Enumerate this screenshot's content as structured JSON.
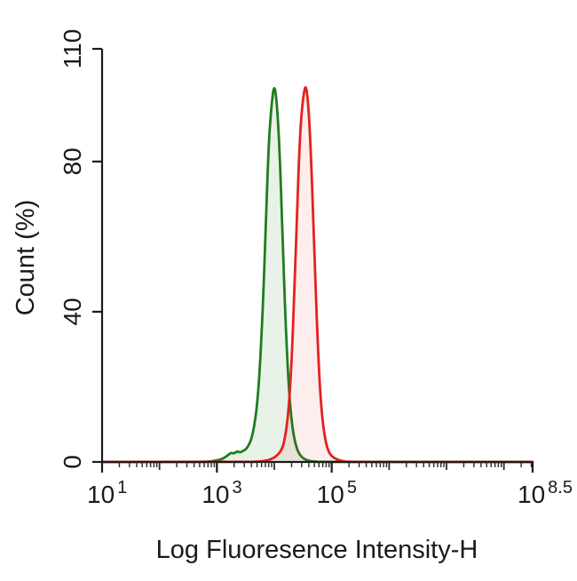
{
  "page": {
    "background": "#ffffff"
  },
  "chart_data": {
    "type": "area",
    "chart_kind": "flow-cytometry-histogram",
    "title": "",
    "xlabel": "Log Fluoresence Intensity-H",
    "ylabel": "Count (%)",
    "x_scale": "log10",
    "xlog_range": [
      1,
      8.5
    ],
    "ylim": [
      0,
      110
    ],
    "grid": false,
    "legend": "none",
    "axis_color": "#1a1a1a",
    "y_ticks": [
      {
        "value": 0,
        "label": "0"
      },
      {
        "value": 40,
        "label": "40"
      },
      {
        "value": 80,
        "label": "80"
      },
      {
        "value": 110,
        "label": "110"
      }
    ],
    "x_ticks": [
      {
        "log": 1,
        "base": "10",
        "exp": "1"
      },
      {
        "log": 3,
        "base": "10",
        "exp": "3"
      },
      {
        "log": 5,
        "base": "10",
        "exp": "5"
      },
      {
        "log": 8.5,
        "base": "10",
        "exp": "8.5"
      }
    ],
    "series": [
      {
        "name": "green-curve",
        "color": "#1e7d1e",
        "fill": "rgba(40,130,40,0.10)",
        "peak_log_x": 4.0,
        "peak_count_pct": 101,
        "points": [
          [
            1.0,
            0
          ],
          [
            2.8,
            0
          ],
          [
            2.9,
            0.2
          ],
          [
            3.0,
            0.4
          ],
          [
            3.05,
            0.6
          ],
          [
            3.1,
            0.9
          ],
          [
            3.15,
            1.3
          ],
          [
            3.2,
            1.9
          ],
          [
            3.25,
            2.5
          ],
          [
            3.3,
            2.2
          ],
          [
            3.35,
            2.9
          ],
          [
            3.4,
            2.5
          ],
          [
            3.45,
            2.9
          ],
          [
            3.5,
            3.3
          ],
          [
            3.55,
            4.3
          ],
          [
            3.6,
            6
          ],
          [
            3.65,
            9.5
          ],
          [
            3.7,
            15
          ],
          [
            3.75,
            25
          ],
          [
            3.8,
            41
          ],
          [
            3.85,
            62
          ],
          [
            3.9,
            84
          ],
          [
            3.95,
            95
          ],
          [
            4.0,
            101
          ],
          [
            4.05,
            95
          ],
          [
            4.1,
            80
          ],
          [
            4.15,
            57
          ],
          [
            4.2,
            36
          ],
          [
            4.25,
            20
          ],
          [
            4.3,
            11
          ],
          [
            4.35,
            6
          ],
          [
            4.4,
            3.2
          ],
          [
            4.45,
            1.8
          ],
          [
            4.5,
            1.0
          ],
          [
            4.55,
            0.6
          ],
          [
            4.6,
            0.3
          ],
          [
            4.7,
            0.1
          ],
          [
            4.8,
            0
          ],
          [
            8.5,
            0
          ]
        ]
      },
      {
        "name": "red-curve",
        "color": "#e42020",
        "fill": "rgba(230,30,30,0.08)",
        "peak_log_x": 4.55,
        "peak_count_pct": 101,
        "points": [
          [
            1.0,
            0
          ],
          [
            3.6,
            0
          ],
          [
            3.7,
            0.1
          ],
          [
            3.8,
            0.2
          ],
          [
            3.9,
            0.5
          ],
          [
            3.95,
            0.8
          ],
          [
            4.0,
            1.2
          ],
          [
            4.05,
            1.8
          ],
          [
            4.1,
            2.6
          ],
          [
            4.15,
            4
          ],
          [
            4.2,
            7.5
          ],
          [
            4.25,
            14
          ],
          [
            4.3,
            26
          ],
          [
            4.35,
            45
          ],
          [
            4.4,
            69
          ],
          [
            4.45,
            88
          ],
          [
            4.5,
            97
          ],
          [
            4.55,
            101
          ],
          [
            4.6,
            94
          ],
          [
            4.65,
            78
          ],
          [
            4.7,
            55
          ],
          [
            4.75,
            34
          ],
          [
            4.8,
            18
          ],
          [
            4.85,
            9.5
          ],
          [
            4.9,
            5
          ],
          [
            4.95,
            2.6
          ],
          [
            5.0,
            1.5
          ],
          [
            5.1,
            0.6
          ],
          [
            5.2,
            0.2
          ],
          [
            5.3,
            0
          ],
          [
            8.5,
            0
          ]
        ]
      }
    ]
  }
}
